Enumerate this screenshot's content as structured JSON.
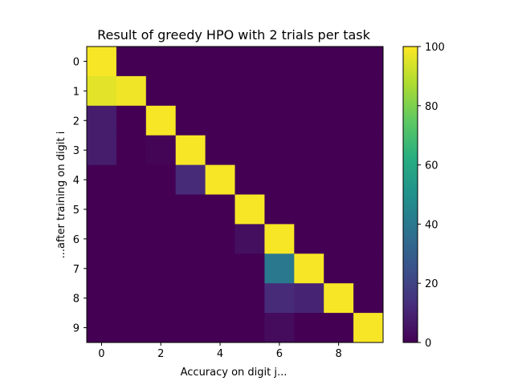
{
  "chart_data": {
    "type": "heatmap",
    "title": "Result of greedy HPO with 2 trials per task",
    "xlabel": "Accuracy on digit j...",
    "ylabel": "...after training on digit i",
    "x_categories": [
      0,
      1,
      2,
      3,
      4,
      5,
      6,
      7,
      8,
      9
    ],
    "y_categories": [
      0,
      1,
      2,
      3,
      4,
      5,
      6,
      7,
      8,
      9
    ],
    "x_ticks": [
      0,
      2,
      4,
      6,
      8
    ],
    "y_ticks": [
      0,
      1,
      2,
      3,
      4,
      5,
      6,
      7,
      8,
      9
    ],
    "values": [
      [
        99,
        0,
        0,
        0,
        0,
        0,
        0,
        0,
        0,
        0
      ],
      [
        96,
        98,
        0,
        0,
        0,
        0,
        0,
        0,
        0,
        0
      ],
      [
        8,
        0,
        99,
        0,
        0,
        0,
        0,
        0,
        0,
        0
      ],
      [
        8,
        0,
        1,
        99,
        0,
        0,
        0,
        0,
        0,
        0
      ],
      [
        0,
        0,
        0,
        12,
        99,
        0,
        0,
        0,
        0,
        0
      ],
      [
        0,
        0,
        0,
        0,
        0,
        99,
        0,
        0,
        0,
        0
      ],
      [
        0,
        0,
        0,
        0,
        0,
        4,
        99,
        0,
        0,
        0
      ],
      [
        0,
        0,
        0,
        0,
        0,
        0,
        40,
        99,
        0,
        0
      ],
      [
        0,
        0,
        0,
        0,
        0,
        0,
        12,
        10,
        99,
        0
      ],
      [
        0,
        0,
        0,
        0,
        0,
        0,
        3,
        0,
        0,
        99
      ]
    ],
    "vmin": 0,
    "vmax": 100,
    "colormap": "viridis",
    "colorbar_ticks": [
      0,
      20,
      40,
      60,
      80,
      100
    ]
  }
}
